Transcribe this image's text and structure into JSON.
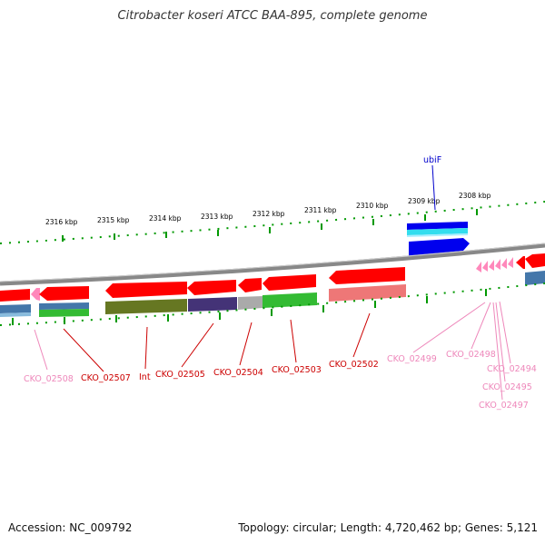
{
  "title": "Citrobacter koseri ATCC BAA-895, complete genome",
  "footer": {
    "accession": "Accession: NC_009792",
    "summary": "Topology: circular; Length: 4,720,462 bp; Genes: 5,121"
  },
  "colors": {
    "forward_cds": "#ff0000",
    "reverse_cds": "#ff0000",
    "pseudo_cds": "#ff88bb",
    "hit_blue": "#0000ee",
    "hit_cyan": "#33ddee",
    "track_green": "#33bb33",
    "track_olive": "#667722",
    "track_navy": "#443377",
    "track_steel": "#4477aa",
    "track_rose": "#ee7777",
    "track_gray": "#aaaaaa",
    "backbone": "#808080",
    "tick_green": "#009900",
    "label_red": "#cc0000",
    "label_pink": "#ee88bb",
    "label_blue": "#0000cc"
  },
  "scale_labels": [
    "2316 kbp",
    "2315 kbp",
    "2314 kbp",
    "2313 kbp",
    "2312 kbp",
    "2311 kbp",
    "2310 kbp",
    "2309 kbp",
    "2308 kbp"
  ],
  "genes": [
    {
      "id": "g-02508",
      "label": "CKO_02508",
      "color": "#ee88bb"
    },
    {
      "id": "g-02507",
      "label": "CKO_02507",
      "color": "#cc0000"
    },
    {
      "id": "g-int",
      "label": "Int",
      "color": "#cc0000"
    },
    {
      "id": "g-02505",
      "label": "CKO_02505",
      "color": "#cc0000"
    },
    {
      "id": "g-02504",
      "label": "CKO_02504",
      "color": "#cc0000"
    },
    {
      "id": "g-02503",
      "label": "CKO_02503",
      "color": "#cc0000"
    },
    {
      "id": "g-02502",
      "label": "CKO_02502",
      "color": "#cc0000"
    },
    {
      "id": "g-02499",
      "label": "CKO_02499",
      "color": "#ee88bb"
    },
    {
      "id": "g-02498",
      "label": "CKO_02498",
      "color": "#ee88bb"
    },
    {
      "id": "g-02494",
      "label": "CKO_02494",
      "color": "#ee88bb"
    },
    {
      "id": "g-02495",
      "label": "CKO_02495",
      "color": "#ee88bb"
    },
    {
      "id": "g-02497",
      "label": "CKO_02497",
      "color": "#ee88bb"
    },
    {
      "id": "g-ubif",
      "label": "ubiF",
      "color": "#0000cc"
    }
  ]
}
